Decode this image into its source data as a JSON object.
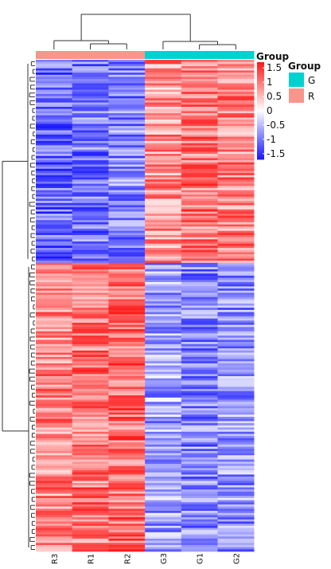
{
  "chart_data": {
    "type": "heatmap",
    "columns": [
      "R3",
      "R1",
      "R2",
      "G3",
      "G1",
      "G2"
    ],
    "column_groups": [
      "R",
      "R",
      "R",
      "G",
      "G",
      "G"
    ],
    "row_clusters": [
      {
        "rows": 95,
        "pattern": [
          -1.1,
          -1.0,
          -0.9,
          0.8,
          1.0,
          0.9
        ]
      },
      {
        "rows": 135,
        "pattern": [
          0.9,
          1.0,
          1.1,
          -0.7,
          -0.9,
          -0.8
        ]
      }
    ],
    "color_scale": {
      "min": -1.7,
      "max": 1.7,
      "low_color": "#1a1aff",
      "mid_color": "#ffffff",
      "high_color": "#ff1a1a",
      "ticks": [
        "1.5",
        "1",
        "0.5",
        "0",
        "-0.5",
        "-1",
        "-1.5"
      ],
      "title": "Group"
    },
    "group_legend": {
      "title": "Group",
      "items": [
        {
          "label": "G",
          "color": "#00d2d2"
        },
        {
          "label": "R",
          "color": "#f8968c"
        }
      ]
    },
    "row_dendrogram": true,
    "column_dendrogram": true
  }
}
